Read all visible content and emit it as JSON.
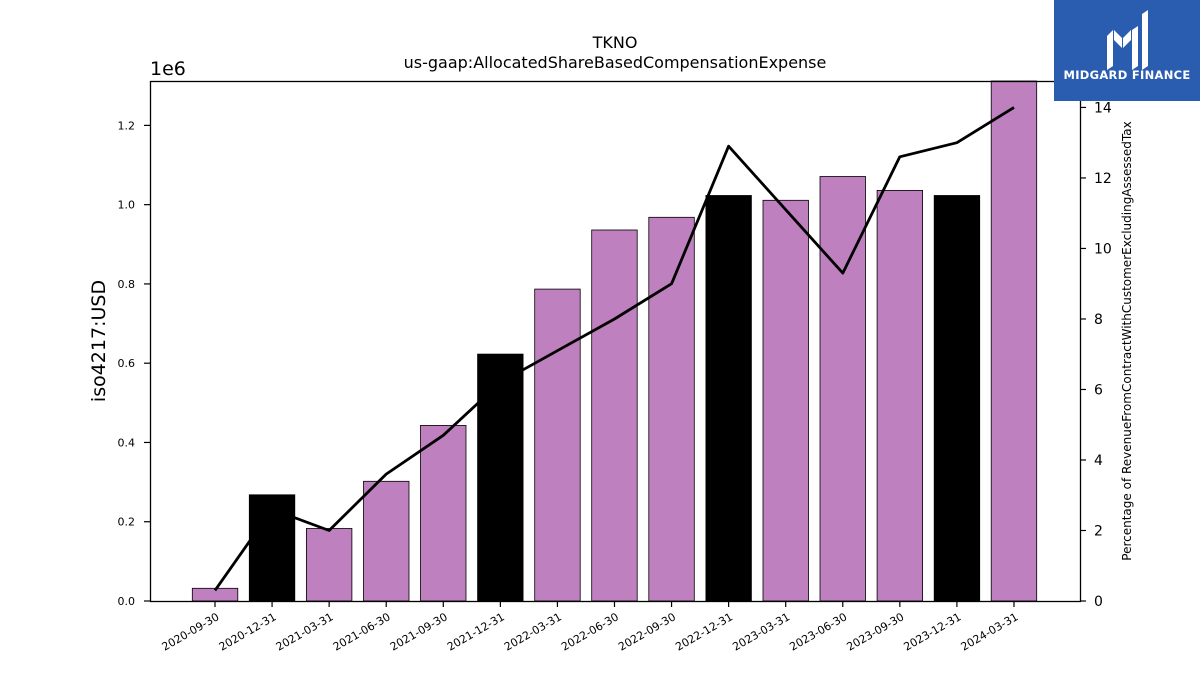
{
  "chart_data": {
    "type": "bar",
    "title": "TKNO",
    "subtitle": "us-gaap:AllocatedShareBasedCompensationExpense",
    "ylabel": "iso4217:USD",
    "y_offset_label": "1e6",
    "y2label": "Percentage of RevenueFromContractWithCustomerExcludingAssessedTax",
    "categories": [
      "2020-09-30",
      "2020-12-31",
      "2021-03-31",
      "2021-06-30",
      "2021-09-30",
      "2021-12-31",
      "2022-03-31",
      "2022-06-30",
      "2022-09-30",
      "2022-12-31",
      "2023-03-31",
      "2023-06-30",
      "2023-09-30",
      "2023-12-31",
      "2024-03-31"
    ],
    "values": [
      32000,
      268000,
      183000,
      302000,
      443000,
      623000,
      787000,
      936000,
      968000,
      1023000,
      1011000,
      1071000,
      1036000,
      1023000,
      1312000
    ],
    "bar_colors": [
      "#bf80bf",
      "#000000",
      "#bf80bf",
      "#bf80bf",
      "#bf80bf",
      "#000000",
      "#bf80bf",
      "#bf80bf",
      "#bf80bf",
      "#000000",
      "#bf80bf",
      "#bf80bf",
      "#bf80bf",
      "#000000",
      "#bf80bf"
    ],
    "line_series": [
      0.3,
      2.6,
      2.0,
      3.6,
      4.7,
      6.2,
      7.1,
      8.0,
      9.0,
      12.9,
      11.1,
      9.3,
      12.6,
      13.0,
      14.0
    ],
    "line_color": "#000000",
    "ylim": [
      0,
      1312000
    ],
    "y2lim": [
      0,
      14.75
    ],
    "yticks": [
      0,
      200000,
      400000,
      600000,
      800000,
      1000000,
      1200000
    ],
    "ytick_labels": [
      "0.0",
      "0.2",
      "0.4",
      "0.6",
      "0.8",
      "1.0",
      "1.2"
    ],
    "y2ticks": [
      0,
      2,
      4,
      6,
      8,
      10,
      12,
      14
    ],
    "y2tick_labels": [
      "0",
      "2",
      "4",
      "6",
      "8",
      "10",
      "12",
      "14"
    ],
    "grid": false
  },
  "logo": {
    "text": "MIDGARD FINANCE",
    "bg": "#2a5db0"
  }
}
